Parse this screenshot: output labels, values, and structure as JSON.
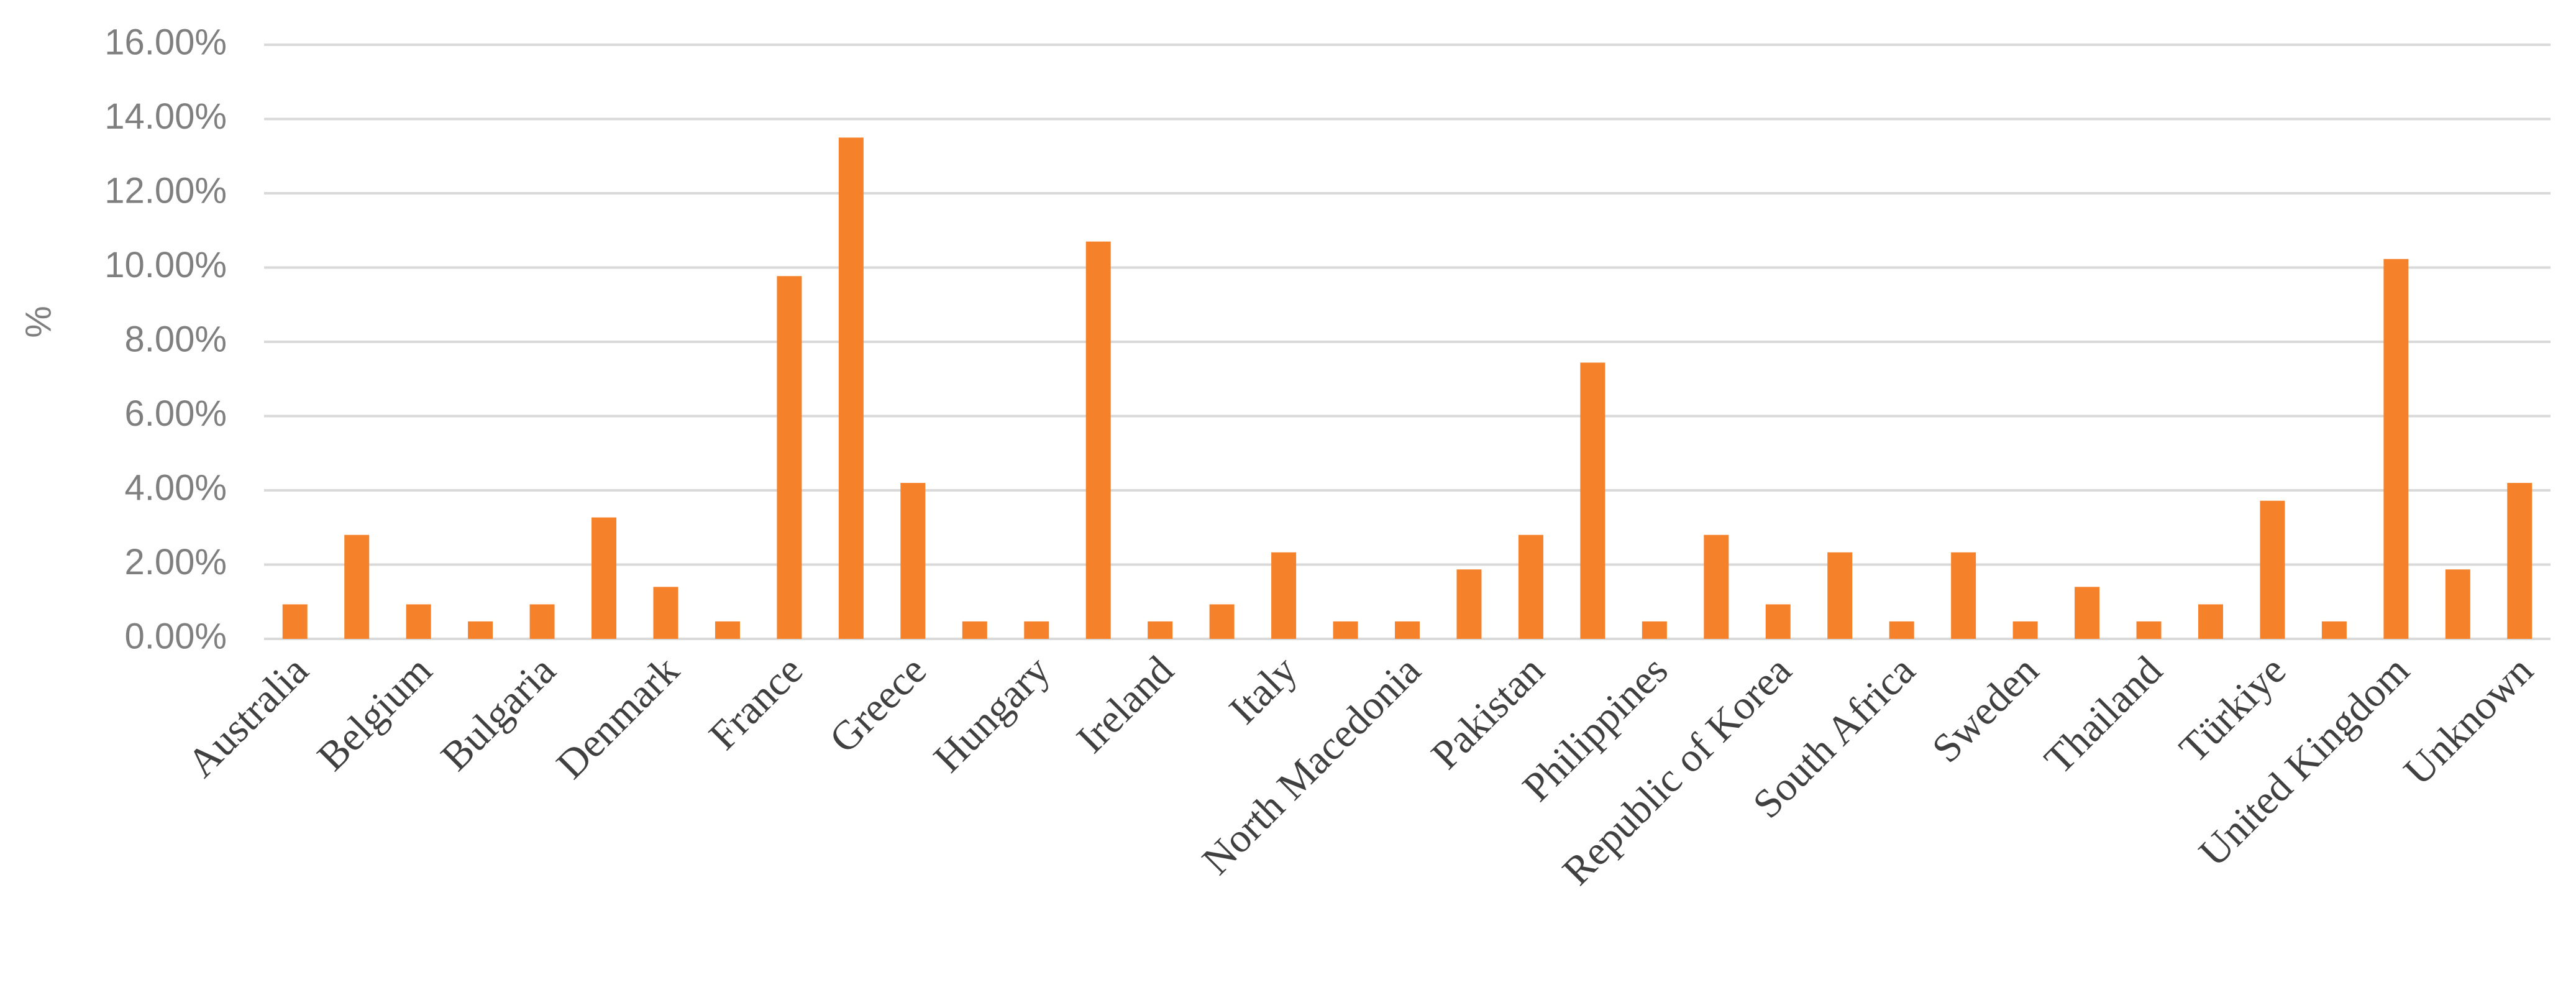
{
  "chart_data": {
    "type": "bar",
    "y_label": "%",
    "categories": [
      "Australia",
      null,
      "Belgium",
      null,
      "Bulgaria",
      null,
      "Denmark",
      null,
      "France",
      null,
      "Greece",
      null,
      "Hungary",
      null,
      "Ireland",
      null,
      "Italy",
      null,
      "North Macedonia",
      null,
      "Pakistan",
      null,
      "Philippines",
      null,
      "Republic of Korea",
      null,
      "South Africa",
      null,
      "Sweden",
      null,
      "Thailand",
      null,
      "Türkiye",
      null,
      "United Kingdom",
      null,
      "Unknown"
    ],
    "values": [
      0.93,
      2.8,
      0.93,
      0.47,
      0.93,
      3.27,
      1.4,
      0.47,
      9.77,
      13.5,
      4.2,
      0.47,
      0.47,
      10.7,
      0.47,
      0.93,
      2.33,
      0.47,
      0.47,
      1.87,
      2.8,
      7.44,
      0.47,
      2.8,
      0.93,
      2.33,
      0.47,
      2.33,
      0.47,
      1.4,
      0.47,
      0.93,
      3.72,
      0.47,
      10.23,
      1.87,
      4.2
    ],
    "color": "#f5822a",
    "ylim": [
      0,
      16
    ],
    "yticks": [
      {
        "value": 0,
        "label": "0.00%"
      },
      {
        "value": 2,
        "label": "2.00%"
      },
      {
        "value": 4,
        "label": "4.00%"
      },
      {
        "value": 6,
        "label": "6.00%"
      },
      {
        "value": 8,
        "label": "8.00%"
      },
      {
        "value": 10,
        "label": "10.00%"
      },
      {
        "value": 12,
        "label": "12.00%"
      },
      {
        "value": 14,
        "label": "14.00%"
      },
      {
        "value": 16,
        "label": "16.00%"
      }
    ],
    "grid": true
  }
}
